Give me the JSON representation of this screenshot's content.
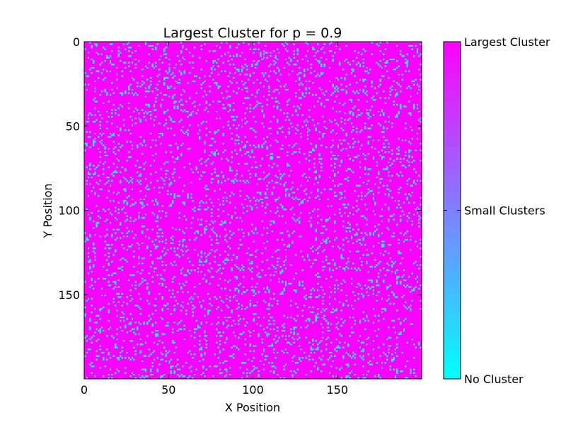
{
  "chart_data": {
    "type": "heatmap",
    "title": "Largest Cluster for p = 0.9",
    "xlabel": "X Position",
    "ylabel": "Y Position",
    "grid_size": [
      200,
      200
    ],
    "p": 0.9,
    "xlim": [
      0,
      200
    ],
    "ylim": [
      200,
      0
    ],
    "x_ticks": [
      "0",
      "50",
      "100",
      "150"
    ],
    "y_ticks": [
      "0",
      "50",
      "100",
      "150"
    ],
    "x_tick_values": [
      0,
      50,
      100,
      150
    ],
    "y_tick_values": [
      0,
      50,
      100,
      150
    ],
    "categories": [
      "No Cluster",
      "Small Clusters",
      "Largest Cluster"
    ],
    "category_values": [
      0,
      0.5,
      1
    ],
    "colormap": "cool",
    "colors": {
      "no_cluster": "#00ffff",
      "small_clusters": "#7f80ff",
      "largest_cluster": "#ff00ff"
    },
    "grid": false,
    "legend": "colorbar-right"
  }
}
